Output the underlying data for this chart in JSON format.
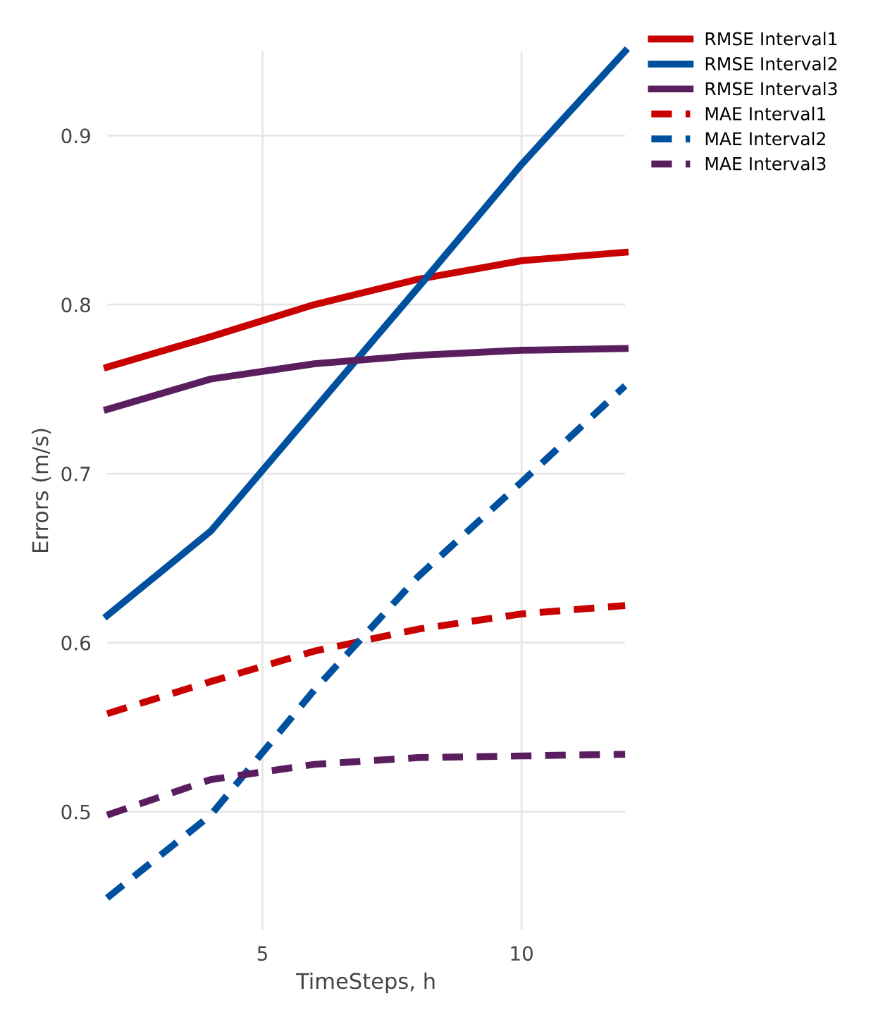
{
  "chart_data": {
    "type": "line",
    "xlabel": "TimeSteps, h",
    "ylabel": "Errors (m/s)",
    "x": [
      2,
      4,
      6,
      8,
      10,
      12
    ],
    "xlim": [
      2,
      12
    ],
    "xticks": [
      5,
      10
    ],
    "ylim": [
      0.43,
      0.95
    ],
    "yticks": [
      0.5,
      0.6,
      0.7,
      0.8,
      0.9
    ],
    "grid": true,
    "legend": "top right",
    "series": [
      {
        "name": "RMSE Interval1",
        "color": "#c80000",
        "line_style": "solid",
        "values": [
          0.763,
          0.781,
          0.8,
          0.815,
          0.826,
          0.831
        ]
      },
      {
        "name": "RMSE Interval2",
        "color": "#0050a0",
        "line_style": "solid",
        "values": [
          0.616,
          0.666,
          0.738,
          0.81,
          0.883,
          0.95
        ]
      },
      {
        "name": "RMSE Interval3",
        "color": "#5a1e5f",
        "line_style": "solid",
        "values": [
          0.738,
          0.756,
          0.765,
          0.77,
          0.773,
          0.774
        ]
      },
      {
        "name": "MAE Interval1",
        "color": "#c80000",
        "line_style": "dashed",
        "values": [
          0.558,
          0.577,
          0.595,
          0.608,
          0.617,
          0.622
        ]
      },
      {
        "name": "MAE Interval2",
        "color": "#0050a0",
        "line_style": "dashed",
        "values": [
          0.449,
          0.498,
          0.572,
          0.639,
          0.695,
          0.752
        ]
      },
      {
        "name": "MAE Interval3",
        "color": "#5a1e5f",
        "line_style": "dashed",
        "values": [
          0.498,
          0.519,
          0.528,
          0.532,
          0.533,
          0.534
        ]
      }
    ]
  }
}
